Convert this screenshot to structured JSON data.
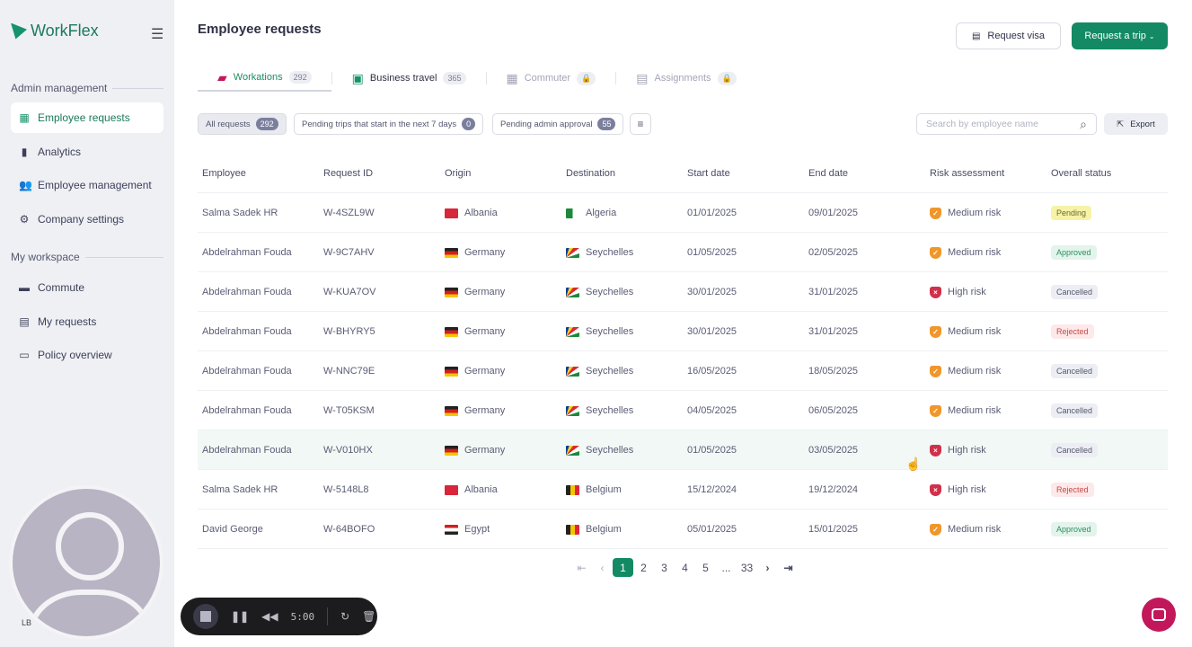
{
  "app": {
    "name": "WorkFlex"
  },
  "sidebar": {
    "sections": [
      {
        "title": "Admin management",
        "items": [
          {
            "label": "Employee requests",
            "icon": "grid-icon",
            "active": true
          },
          {
            "label": "Analytics",
            "icon": "bar-chart-icon"
          },
          {
            "label": "Employee management",
            "icon": "users-icon"
          },
          {
            "label": "Company settings",
            "icon": "gear-icon"
          }
        ]
      },
      {
        "title": "My workspace",
        "items": [
          {
            "label": "Commute",
            "icon": "briefcase-icon"
          },
          {
            "label": "My requests",
            "icon": "document-icon"
          },
          {
            "label": "Policy overview",
            "icon": "suitcase-icon"
          }
        ]
      }
    ],
    "avatar_initials": "LB"
  },
  "recorder": {
    "time": "5:00"
  },
  "header": {
    "title": "Employee requests",
    "request_visa": "Request visa",
    "request_trip": "Request a trip"
  },
  "tabs": [
    {
      "label": "Workations",
      "count": "292",
      "active": true
    },
    {
      "label": "Business travel",
      "count": "365"
    },
    {
      "label": "Commuter",
      "locked": true
    },
    {
      "label": "Assignments",
      "locked": true
    }
  ],
  "filters": [
    {
      "label": "All requests",
      "count": "292",
      "active": true
    },
    {
      "label": "Pending trips that start in the next 7 days",
      "count": "0"
    },
    {
      "label": "Pending admin approval",
      "count": "55"
    }
  ],
  "search": {
    "placeholder": "Search by employee name"
  },
  "export_label": "Export",
  "table": {
    "columns": [
      "Employee",
      "Request ID",
      "Origin",
      "Destination",
      "Start date",
      "End date",
      "Risk assessment",
      "Overall status"
    ],
    "rows": [
      {
        "employee": "Salma Sadek HR",
        "id": "W-4SZL9W",
        "origin": "Albania",
        "origin_flag": "al",
        "destination": "Algeria",
        "dest_flag": "dz",
        "start": "01/01/2025",
        "end": "09/01/2025",
        "risk": "Medium risk",
        "status": "Pending"
      },
      {
        "employee": "Abdelrahman Fouda",
        "id": "W-9C7AHV",
        "origin": "Germany",
        "origin_flag": "de",
        "destination": "Seychelles",
        "dest_flag": "sc",
        "start": "01/05/2025",
        "end": "02/05/2025",
        "risk": "Medium risk",
        "status": "Approved"
      },
      {
        "employee": "Abdelrahman Fouda",
        "id": "W-KUA7OV",
        "origin": "Germany",
        "origin_flag": "de",
        "destination": "Seychelles",
        "dest_flag": "sc",
        "start": "30/01/2025",
        "end": "31/01/2025",
        "risk": "High risk",
        "status": "Cancelled"
      },
      {
        "employee": "Abdelrahman Fouda",
        "id": "W-BHYRY5",
        "origin": "Germany",
        "origin_flag": "de",
        "destination": "Seychelles",
        "dest_flag": "sc",
        "start": "30/01/2025",
        "end": "31/01/2025",
        "risk": "Medium risk",
        "status": "Rejected"
      },
      {
        "employee": "Abdelrahman Fouda",
        "id": "W-NNC79E",
        "origin": "Germany",
        "origin_flag": "de",
        "destination": "Seychelles",
        "dest_flag": "sc",
        "start": "16/05/2025",
        "end": "18/05/2025",
        "risk": "Medium risk",
        "status": "Cancelled"
      },
      {
        "employee": "Abdelrahman Fouda",
        "id": "W-T05KSM",
        "origin": "Germany",
        "origin_flag": "de",
        "destination": "Seychelles",
        "dest_flag": "sc",
        "start": "04/05/2025",
        "end": "06/05/2025",
        "risk": "Medium risk",
        "status": "Cancelled"
      },
      {
        "employee": "Abdelrahman Fouda",
        "id": "W-V010HX",
        "origin": "Germany",
        "origin_flag": "de",
        "destination": "Seychelles",
        "dest_flag": "sc",
        "start": "01/05/2025",
        "end": "03/05/2025",
        "risk": "High risk",
        "status": "Cancelled",
        "hover": true
      },
      {
        "employee": "Salma Sadek HR",
        "id": "W-5148L8",
        "origin": "Albania",
        "origin_flag": "al",
        "destination": "Belgium",
        "dest_flag": "be",
        "start": "15/12/2024",
        "end": "19/12/2024",
        "risk": "High risk",
        "status": "Rejected"
      },
      {
        "employee": "David George",
        "id": "W-64BOFO",
        "origin": "Egypt",
        "origin_flag": "eg",
        "destination": "Belgium",
        "dest_flag": "be",
        "start": "05/01/2025",
        "end": "15/01/2025",
        "risk": "Medium risk",
        "status": "Approved"
      }
    ]
  },
  "pagination": {
    "pages": [
      "1",
      "2",
      "3",
      "4",
      "5",
      "...",
      "33"
    ],
    "current": "1"
  },
  "colors": {
    "brand": "#138a63",
    "medium_risk": "#f0962a",
    "high_risk": "#d0304a",
    "pending_bg": "#f6f3a8",
    "approved_bg": "#e3f4ec",
    "cancelled_bg": "#eceef3",
    "rejected_bg": "#fde9e9"
  }
}
